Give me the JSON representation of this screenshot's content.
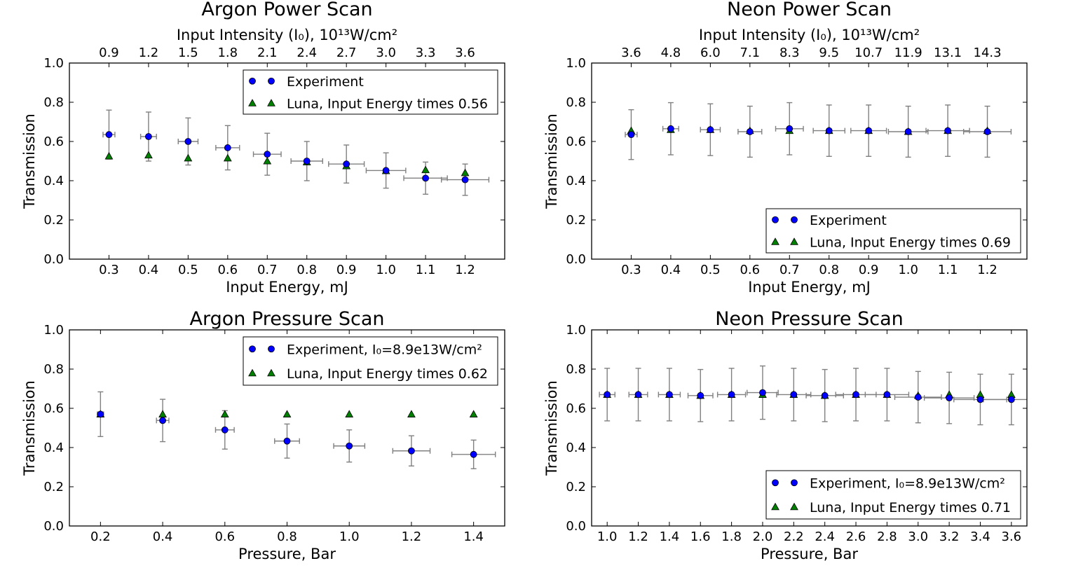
{
  "chart_data": [
    {
      "type": "scatter",
      "title": "Argon Power Scan",
      "xlabel": "Input Energy, mJ",
      "ylabel": "Transmission",
      "top_xlabel": "Input Intensity (I₀), 10¹³W/cm²",
      "xlim": [
        0.2,
        1.3
      ],
      "ylim": [
        0.0,
        1.0
      ],
      "xticks": [
        "0.3",
        "0.4",
        "0.5",
        "0.6",
        "0.7",
        "0.8",
        "0.9",
        "1.0",
        "1.1",
        "1.2"
      ],
      "xtick_values": [
        0.3,
        0.4,
        0.5,
        0.6,
        0.7,
        0.8,
        0.9,
        1.0,
        1.1,
        1.2
      ],
      "top_xticks": [
        "0.9",
        "1.2",
        "1.5",
        "1.8",
        "2.1",
        "2.4",
        "2.7",
        "3.0",
        "3.3",
        "3.6"
      ],
      "yticks": [
        "0.0",
        "0.2",
        "0.4",
        "0.6",
        "0.8",
        "1.0"
      ],
      "legend_position": "top-right",
      "series": [
        {
          "name": "Experiment",
          "marker": "circle",
          "color": "#0000ff",
          "x": [
            0.3,
            0.4,
            0.5,
            0.6,
            0.7,
            0.8,
            0.9,
            1.0,
            1.1,
            1.2
          ],
          "y": [
            0.635,
            0.625,
            0.6,
            0.568,
            0.535,
            0.5,
            0.485,
            0.452,
            0.413,
            0.405
          ],
          "yerr": [
            0.125,
            0.125,
            0.12,
            0.113,
            0.107,
            0.1,
            0.097,
            0.09,
            0.082,
            0.08
          ],
          "xerr": [
            0.03,
            0.04,
            0.05,
            0.06,
            0.07,
            0.08,
            0.09,
            0.1,
            0.11,
            0.12
          ]
        },
        {
          "name": "Luna, Input Energy times 0.56",
          "marker": "triangle",
          "color": "#008000",
          "x": [
            0.3,
            0.4,
            0.5,
            0.6,
            0.7,
            0.8,
            0.9,
            1.0,
            1.1,
            1.2
          ],
          "y": [
            0.525,
            0.53,
            0.515,
            0.515,
            0.5,
            0.495,
            0.475,
            0.45,
            0.455,
            0.44
          ]
        }
      ]
    },
    {
      "type": "scatter",
      "title": "Neon Power Scan",
      "xlabel": "Input Energy, mJ",
      "ylabel": "Transmission",
      "top_xlabel": "Input Intensity (I₀), 10¹³W/cm²",
      "xlim": [
        0.2,
        1.3
      ],
      "ylim": [
        0.0,
        1.0
      ],
      "xticks": [
        "0.3",
        "0.4",
        "0.5",
        "0.6",
        "0.7",
        "0.8",
        "0.9",
        "1.0",
        "1.1",
        "1.2"
      ],
      "xtick_values": [
        0.3,
        0.4,
        0.5,
        0.6,
        0.7,
        0.8,
        0.9,
        1.0,
        1.1,
        1.2
      ],
      "top_xticks": [
        "3.6",
        "4.8",
        "6.0",
        "7.1",
        "8.3",
        "9.5",
        "10.7",
        "11.9",
        "13.1",
        "14.3"
      ],
      "yticks": [
        "0.0",
        "0.2",
        "0.4",
        "0.6",
        "0.8",
        "1.0"
      ],
      "legend_position": "bottom-right",
      "series": [
        {
          "name": "Experiment",
          "marker": "circle",
          "color": "#0000ff",
          "x": [
            0.3,
            0.4,
            0.5,
            0.6,
            0.7,
            0.8,
            0.9,
            1.0,
            1.1,
            1.2
          ],
          "y": [
            0.635,
            0.665,
            0.66,
            0.65,
            0.665,
            0.655,
            0.655,
            0.65,
            0.655,
            0.65
          ],
          "yerr": [
            0.127,
            0.133,
            0.132,
            0.13,
            0.133,
            0.131,
            0.131,
            0.13,
            0.131,
            0.13
          ],
          "xerr": [
            0.03,
            0.04,
            0.05,
            0.06,
            0.07,
            0.08,
            0.09,
            0.1,
            0.11,
            0.12
          ]
        },
        {
          "name": "Luna, Input Energy times 0.69",
          "marker": "triangle",
          "color": "#008000",
          "x": [
            0.3,
            0.4,
            0.5,
            0.6,
            0.7,
            0.8,
            0.9,
            1.0,
            1.1,
            1.2
          ],
          "y": [
            0.655,
            0.66,
            0.66,
            0.655,
            0.655,
            0.655,
            0.655,
            0.65,
            0.655,
            0.655
          ]
        }
      ]
    },
    {
      "type": "scatter",
      "title": "Argon Pressure Scan",
      "xlabel": "Pressure, Bar",
      "ylabel": "Transmission",
      "xlim": [
        0.1,
        1.5
      ],
      "ylim": [
        0.0,
        1.0
      ],
      "xticks": [
        "0.2",
        "0.4",
        "0.6",
        "0.8",
        "1.0",
        "1.2",
        "1.4"
      ],
      "xtick_values": [
        0.2,
        0.4,
        0.6,
        0.8,
        1.0,
        1.2,
        1.4
      ],
      "yticks": [
        "0.0",
        "0.2",
        "0.4",
        "0.6",
        "0.8",
        "1.0"
      ],
      "legend_position": "top-right",
      "series": [
        {
          "name": "Experiment, I₀=8.9e13W/cm²",
          "marker": "circle",
          "color": "#0000ff",
          "x": [
            0.2,
            0.4,
            0.6,
            0.8,
            1.0,
            1.2,
            1.4
          ],
          "y": [
            0.57,
            0.538,
            0.49,
            0.433,
            0.408,
            0.383,
            0.365
          ],
          "yerr": [
            0.114,
            0.108,
            0.098,
            0.087,
            0.082,
            0.077,
            0.073
          ],
          "xerr": [
            0.02,
            0.04,
            0.06,
            0.08,
            0.1,
            0.12,
            0.14
          ]
        },
        {
          "name": "Luna, Input Energy times 0.62",
          "marker": "triangle",
          "color": "#008000",
          "x": [
            0.2,
            0.4,
            0.6,
            0.8,
            1.0,
            1.2,
            1.4
          ],
          "y": [
            0.57,
            0.57,
            0.57,
            0.57,
            0.57,
            0.57,
            0.57
          ]
        }
      ]
    },
    {
      "type": "scatter",
      "title": "Neon Pressure Scan",
      "xlabel": "Pressure, Bar",
      "ylabel": "Transmission",
      "xlim": [
        0.9,
        3.7
      ],
      "ylim": [
        0.0,
        1.0
      ],
      "xticks": [
        "1.0",
        "1.2",
        "1.4",
        "1.6",
        "1.8",
        "2.0",
        "2.2",
        "2.4",
        "2.6",
        "2.8",
        "3.0",
        "3.2",
        "3.4",
        "3.6"
      ],
      "xtick_values": [
        1.0,
        1.2,
        1.4,
        1.6,
        1.8,
        2.0,
        2.2,
        2.4,
        2.6,
        2.8,
        3.0,
        3.2,
        3.4,
        3.6
      ],
      "yticks": [
        "0.0",
        "0.2",
        "0.4",
        "0.6",
        "0.8",
        "1.0"
      ],
      "legend_position": "bottom-right",
      "series": [
        {
          "name": "Experiment, I₀=8.9e13W/cm²",
          "marker": "circle",
          "color": "#0000ff",
          "x": [
            1.0,
            1.2,
            1.4,
            1.6,
            1.8,
            2.0,
            2.2,
            2.4,
            2.6,
            2.8,
            3.0,
            3.2,
            3.4,
            3.6
          ],
          "y": [
            0.67,
            0.67,
            0.67,
            0.665,
            0.67,
            0.68,
            0.67,
            0.665,
            0.67,
            0.67,
            0.657,
            0.653,
            0.645,
            0.645
          ],
          "yerr": [
            0.134,
            0.134,
            0.134,
            0.133,
            0.134,
            0.136,
            0.134,
            0.133,
            0.134,
            0.134,
            0.131,
            0.131,
            0.129,
            0.129
          ],
          "xerr": [
            0.1,
            0.12,
            0.14,
            0.16,
            0.18,
            0.2,
            0.22,
            0.24,
            0.26,
            0.28,
            0.3,
            0.32,
            0.34,
            0.36
          ]
        },
        {
          "name": "Luna, Input Energy times 0.71",
          "marker": "triangle",
          "color": "#008000",
          "x": [
            1.0,
            1.2,
            1.4,
            1.6,
            1.8,
            2.0,
            2.2,
            2.4,
            2.6,
            2.8,
            3.0,
            3.2,
            3.4,
            3.6
          ],
          "y": [
            0.67,
            0.67,
            0.67,
            0.665,
            0.67,
            0.67,
            0.67,
            0.665,
            0.67,
            0.67,
            0.665,
            0.67,
            0.67,
            0.67
          ]
        }
      ]
    }
  ]
}
